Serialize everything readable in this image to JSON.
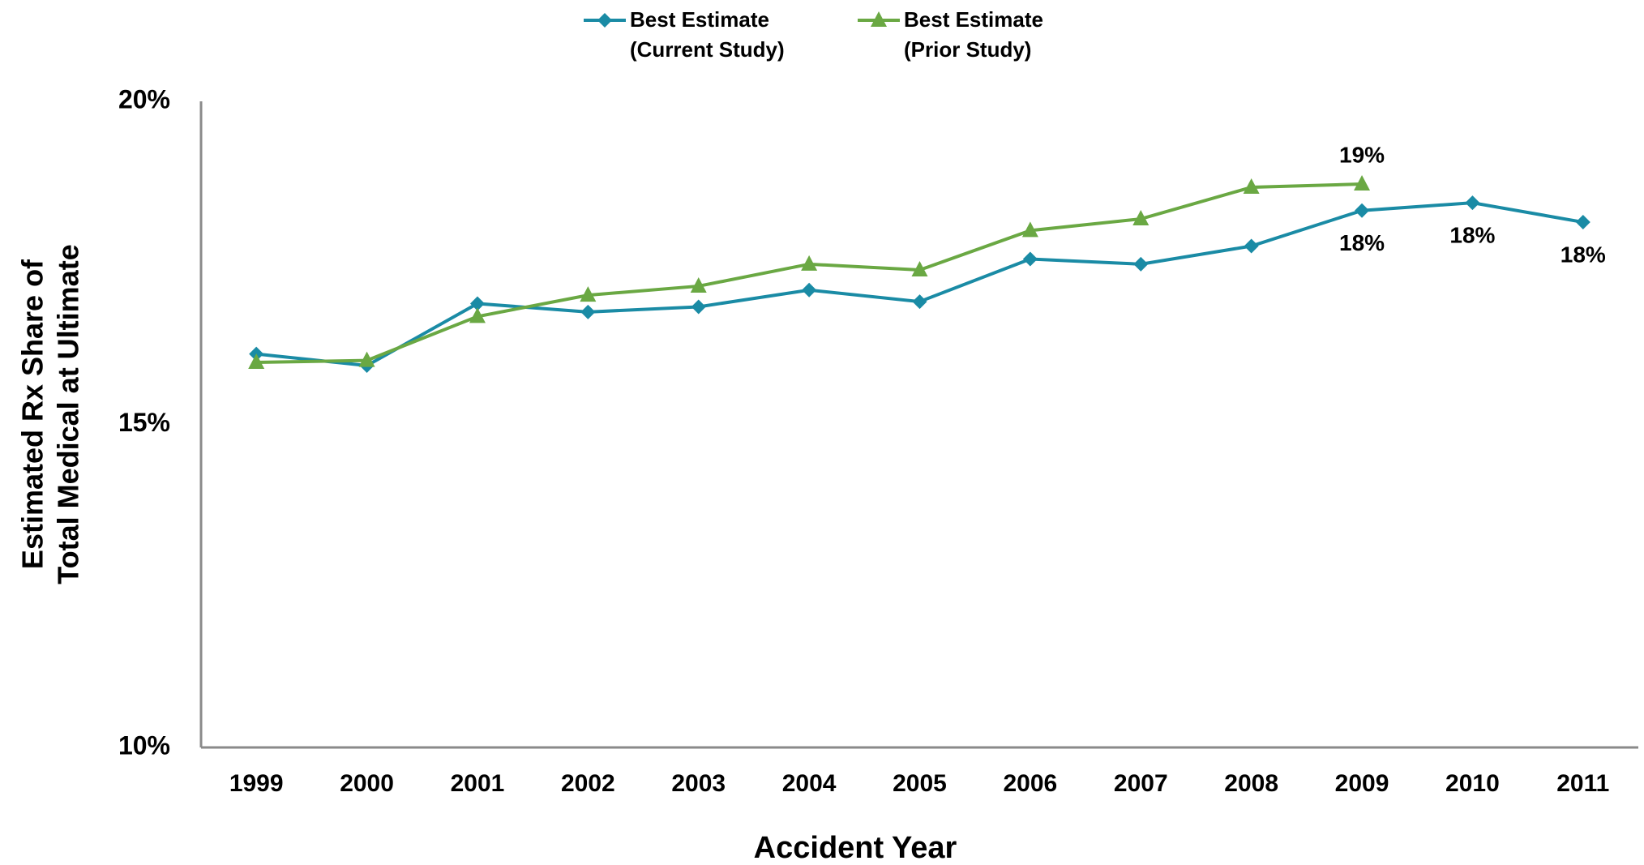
{
  "chart_data": {
    "type": "line",
    "xlabel": "Accident Year",
    "ylabel": [
      "Estimated Rx Share of",
      "Total Medical at Ultimate"
    ],
    "categories": [
      "1999",
      "2000",
      "2001",
      "2002",
      "2003",
      "2004",
      "2005",
      "2006",
      "2007",
      "2008",
      "2009",
      "2010",
      "2011"
    ],
    "series": [
      {
        "name": "Best Estimate (Current Study)",
        "color": "#1a8ba5",
        "marker": "diamond",
        "values": [
          16.09,
          15.91,
          16.87,
          16.74,
          16.82,
          17.08,
          16.9,
          17.56,
          17.48,
          17.76,
          18.31,
          18.43,
          18.13
        ],
        "value_labels": [
          null,
          null,
          null,
          null,
          null,
          null,
          null,
          null,
          null,
          null,
          "18%",
          "18%",
          "18%"
        ],
        "label_position": "below"
      },
      {
        "name": "Best Estimate (Prior Study)",
        "color": "#6aa843",
        "marker": "triangle",
        "values": [
          15.96,
          15.99,
          16.67,
          17.0,
          17.14,
          17.48,
          17.39,
          18.0,
          18.18,
          18.67,
          18.72,
          null,
          null
        ],
        "value_labels": [
          null,
          null,
          null,
          null,
          null,
          null,
          null,
          null,
          null,
          null,
          "19%",
          null,
          null
        ],
        "label_position": "above"
      }
    ],
    "ylim": [
      10,
      20
    ],
    "yticks": [
      {
        "value": 10,
        "label": "10%"
      },
      {
        "value": 15,
        "label": "15%"
      },
      {
        "value": 20,
        "label": "20%"
      }
    ],
    "grid": false,
    "legend": "top"
  }
}
